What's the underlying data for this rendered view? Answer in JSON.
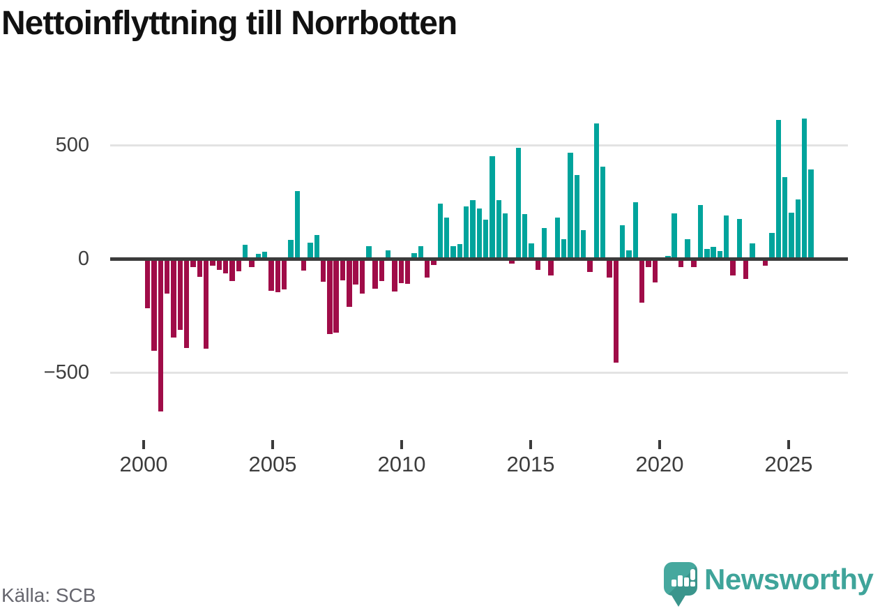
{
  "title": "Nettoinflyttning till Norrbotten",
  "source": {
    "label": "Källa: SCB"
  },
  "brand": {
    "name": "Newsworthy",
    "logo_icon": "speech-bubble-bar-chart-icon"
  },
  "colors": {
    "positive": "#00a49c",
    "negative": "#a00c48",
    "zero_line": "#3b3b3b",
    "gridline": "#e3e3e3",
    "axis_text": "#3d3d3d",
    "title_text": "#111111",
    "source_text": "#66666e",
    "brand_teal": "#3fa49a"
  },
  "chart_data": {
    "type": "bar",
    "title": "Nettoinflyttning till Norrbotten",
    "xlabel": "",
    "ylabel": "",
    "grid": "horizontal",
    "legend": "none",
    "ylim": [
      -760,
      660
    ],
    "yticks": [
      500,
      0,
      -500
    ],
    "ytick_labels": [
      "500",
      "0",
      "−500"
    ],
    "xticks": [
      2000,
      2005,
      2010,
      2015,
      2020,
      2025
    ],
    "xtick_labels": [
      "2000",
      "2005",
      "2010",
      "2015",
      "2020",
      "2025"
    ],
    "x": [
      "2000-Q1",
      "2000-Q2",
      "2000-Q3",
      "2000-Q4",
      "2001-Q1",
      "2001-Q2",
      "2001-Q3",
      "2001-Q4",
      "2002-Q1",
      "2002-Q2",
      "2002-Q3",
      "2002-Q4",
      "2003-Q1",
      "2003-Q2",
      "2003-Q3",
      "2003-Q4",
      "2004-Q1",
      "2004-Q2",
      "2004-Q3",
      "2004-Q4",
      "2005-Q1",
      "2005-Q2",
      "2005-Q3",
      "2005-Q4",
      "2006-Q1",
      "2006-Q2",
      "2006-Q3",
      "2006-Q4",
      "2007-Q1",
      "2007-Q2",
      "2007-Q3",
      "2007-Q4",
      "2008-Q1",
      "2008-Q2",
      "2008-Q3",
      "2008-Q4",
      "2009-Q1",
      "2009-Q2",
      "2009-Q3",
      "2009-Q4",
      "2010-Q1",
      "2010-Q2",
      "2010-Q3",
      "2010-Q4",
      "2011-Q1",
      "2011-Q2",
      "2011-Q3",
      "2011-Q4",
      "2012-Q1",
      "2012-Q2",
      "2012-Q3",
      "2012-Q4",
      "2013-Q1",
      "2013-Q2",
      "2013-Q3",
      "2013-Q4",
      "2014-Q1",
      "2014-Q2",
      "2014-Q3",
      "2014-Q4",
      "2015-Q1",
      "2015-Q2",
      "2015-Q3",
      "2015-Q4",
      "2016-Q1",
      "2016-Q2",
      "2016-Q3",
      "2016-Q4",
      "2017-Q1",
      "2017-Q2",
      "2017-Q3",
      "2017-Q4",
      "2018-Q1",
      "2018-Q2",
      "2018-Q3",
      "2018-Q4",
      "2019-Q1",
      "2019-Q2",
      "2019-Q3",
      "2019-Q4",
      "2020-Q1",
      "2020-Q2",
      "2020-Q3",
      "2020-Q4",
      "2021-Q1",
      "2021-Q2",
      "2021-Q3",
      "2021-Q4",
      "2022-Q1",
      "2022-Q2",
      "2022-Q3",
      "2022-Q4",
      "2023-Q1",
      "2023-Q2",
      "2023-Q3",
      "2023-Q4",
      "2024-Q1",
      "2024-Q2",
      "2024-Q3",
      "2024-Q4",
      "2025-Q1",
      "2025-Q2",
      "2025-Q3"
    ],
    "values": [
      -218,
      -405,
      -673,
      -152,
      -346,
      -312,
      -392,
      -37,
      -80,
      -395,
      -32,
      -50,
      -63,
      -99,
      -55,
      60,
      -37,
      21,
      30,
      -140,
      -147,
      -135,
      82,
      298,
      -53,
      70,
      104,
      -102,
      -332,
      -326,
      -94,
      -212,
      -114,
      -152,
      56,
      -132,
      -99,
      37,
      -145,
      -106,
      -111,
      24,
      54,
      -84,
      -28,
      241,
      182,
      56,
      64,
      230,
      257,
      220,
      171,
      450,
      258,
      199,
      -23,
      487,
      197,
      69,
      -49,
      136,
      -74,
      181,
      87,
      467,
      368,
      125,
      -59,
      595,
      404,
      -82,
      -456,
      147,
      38,
      250,
      -194,
      -37,
      -103,
      3,
      12,
      199,
      -37,
      86,
      -37,
      237,
      43,
      51,
      35,
      189,
      -75,
      174,
      -88,
      67,
      3,
      -31,
      113,
      610,
      358,
      202,
      261,
      618,
      394
    ]
  }
}
